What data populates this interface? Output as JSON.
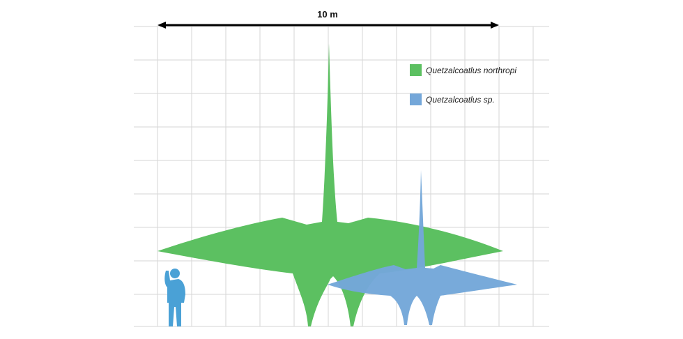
{
  "scale_bar": {
    "label": "10 m"
  },
  "legend": [
    {
      "label": "Quetzalcoatlus northropi",
      "color": "#5cc061"
    },
    {
      "label": "Quetzalcoatlus sp.",
      "color": "#74a7d9"
    }
  ],
  "colors": {
    "grid": "#d6d6d6",
    "human": "#4aa1d6",
    "northropi": "#5cc061",
    "sp": "#74a7d9"
  }
}
